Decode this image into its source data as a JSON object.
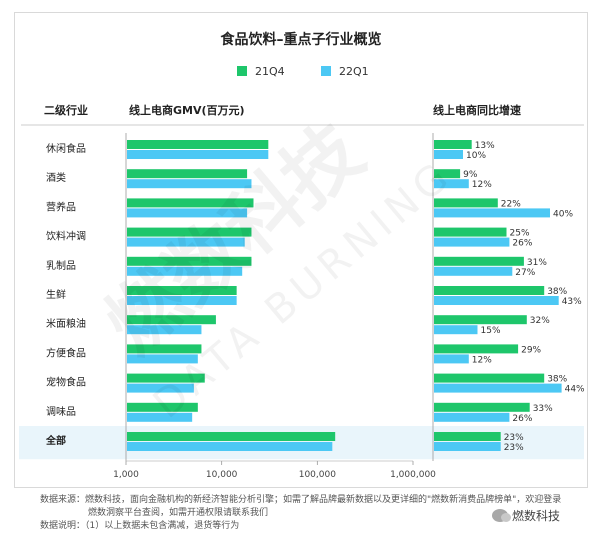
{
  "title": "食品饮料–重点子行业概览",
  "legend": [
    {
      "name": "21Q4",
      "color": "#1ec66b"
    },
    {
      "name": "22Q1",
      "color": "#4cc8f4"
    }
  ],
  "headers": {
    "category": "二级行业",
    "gmv": "线上电商GMV(百万元)",
    "growth": "线上电商同比增速"
  },
  "chart_data": {
    "type": "bar",
    "title": "食品饮料–重点子行业概览",
    "categories": [
      "休闲食品",
      "酒类",
      "营养品",
      "饮料冲调",
      "乳制品",
      "生鲜",
      "米面粮油",
      "方便食品",
      "宠物食品",
      "调味品",
      "全部"
    ],
    "gmv": {
      "label": "线上电商GMV(百万元)",
      "scale": "log",
      "xlim": [
        1000,
        1000000
      ],
      "ticks": [
        "1,000",
        "10,000",
        "100,000",
        "1,000,000"
      ],
      "tick_values": [
        1000,
        10000,
        100000,
        1000000
      ],
      "series": [
        {
          "name": "21Q4",
          "values": [
            30000,
            18000,
            21000,
            20000,
            20000,
            14000,
            8500,
            6000,
            6500,
            5500,
            150000
          ]
        },
        {
          "name": "22Q1",
          "values": [
            30000,
            20000,
            18000,
            17000,
            16000,
            14000,
            6000,
            5500,
            5000,
            4800,
            140000
          ]
        }
      ]
    },
    "growth": {
      "label": "线上电商同比增速",
      "unit": "%",
      "xlim": [
        0,
        45
      ],
      "series": [
        {
          "name": "21Q4",
          "values": [
            13,
            9,
            22,
            25,
            31,
            38,
            32,
            29,
            38,
            33,
            23
          ]
        },
        {
          "name": "22Q1",
          "values": [
            10,
            12,
            40,
            26,
            27,
            43,
            15,
            12,
            44,
            26,
            23
          ]
        }
      ]
    },
    "highlight_category": "全部"
  },
  "watermark": {
    "cn": "燃数科技",
    "en": "DATA BURNING"
  },
  "footer": {
    "source": "数据来源：燃数科技，面向金融机构的新经济智能分析引擎；如需了解品牌最新数据以及更详细的\"燃数新消费品牌榜单\"，欢迎登录",
    "source2": "燃数洞察平台查阅，如需开通权限请联系我们",
    "note": "数据说明：（1）以上数据未包含满减，退货等行为"
  },
  "wechat_label": "燃数科技"
}
